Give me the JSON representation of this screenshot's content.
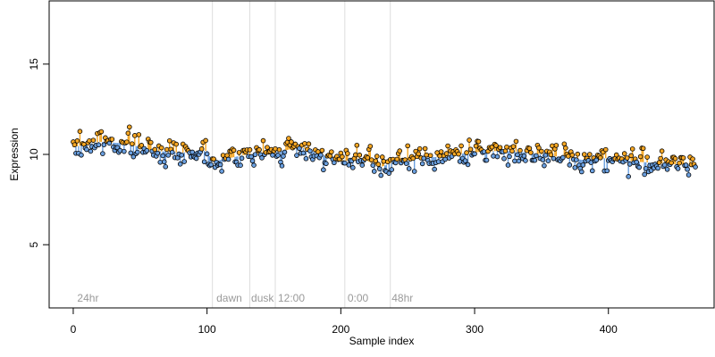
{
  "chart_data": {
    "type": "scatter",
    "title": "",
    "xlabel": "Sample index",
    "ylabel": "Expression",
    "xlim": [
      -18,
      479
    ],
    "ylim": [
      1.5,
      18.5
    ],
    "x_ticks": [
      0,
      100,
      200,
      300,
      400
    ],
    "y_ticks": [
      5,
      10,
      15
    ],
    "grid": false,
    "colors": {
      "above": "#f5a623",
      "below": "#6a9fdf",
      "point_stroke": "#000000",
      "vline": "#dddddd",
      "annotation": "#9a9a9a"
    },
    "annotations": [
      {
        "x": 104,
        "label": "24hr",
        "label_x": 3
      },
      {
        "x": 132,
        "label": "dawn",
        "label_x": 107
      },
      {
        "x": 151,
        "label": "dusk",
        "label_x": 133
      },
      {
        "x": 203,
        "label": "12:00",
        "label_x": 153
      },
      {
        "x": 237,
        "label": "0:00",
        "label_x": 205
      },
      {
        "x": null,
        "label": "48hr",
        "label_x": 238
      }
    ],
    "trend": [
      [
        0,
        10.4
      ],
      [
        20,
        10.7
      ],
      [
        40,
        10.6
      ],
      [
        60,
        10.2
      ],
      [
        80,
        10.1
      ],
      [
        100,
        10.2
      ],
      [
        104,
        9.6
      ],
      [
        130,
        10.0
      ],
      [
        150,
        10.1
      ],
      [
        170,
        10.4
      ],
      [
        185,
        10.0
      ],
      [
        200,
        9.6
      ],
      [
        215,
        9.8
      ],
      [
        230,
        9.3
      ],
      [
        240,
        9.6
      ],
      [
        260,
        9.8
      ],
      [
        280,
        9.9
      ],
      [
        295,
        10.1
      ],
      [
        320,
        10.2
      ],
      [
        340,
        10.1
      ],
      [
        360,
        9.9
      ],
      [
        380,
        9.7
      ],
      [
        400,
        9.8
      ],
      [
        420,
        9.6
      ],
      [
        440,
        9.5
      ],
      [
        465,
        9.4
      ]
    ],
    "noise_seed": 7,
    "noise_sd": 0.33,
    "n_points": 466
  }
}
